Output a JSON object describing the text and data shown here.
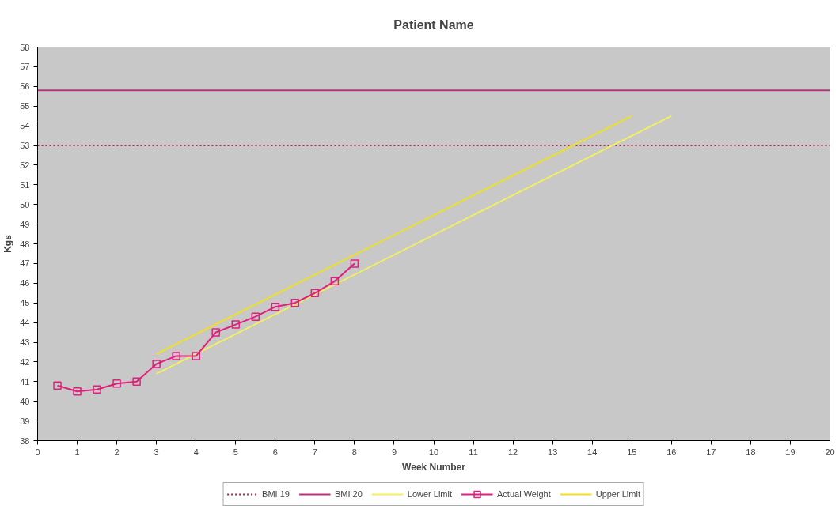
{
  "chart_data": {
    "type": "line",
    "title": "Patient Name",
    "xlabel": "Week Number",
    "ylabel": "Kgs",
    "xlim": [
      0,
      20
    ],
    "xticks": [
      0,
      1,
      2,
      3,
      4,
      5,
      6,
      7,
      8,
      9,
      10,
      11,
      12,
      13,
      14,
      15,
      16,
      17,
      18,
      19,
      20
    ],
    "ylim": [
      38,
      58
    ],
    "yticks": [
      38,
      39,
      40,
      41,
      42,
      43,
      44,
      45,
      46,
      47,
      48,
      49,
      50,
      51,
      52,
      53,
      54,
      55,
      56,
      57,
      58
    ],
    "grid": false,
    "legend": "bottom",
    "marker": "none",
    "line_style": "solid",
    "series": [
      {
        "name": "BMI 19",
        "color": "#a0304a",
        "line_style": "dotted",
        "x": [
          0,
          20
        ],
        "values": [
          53.0,
          53.0
        ]
      },
      {
        "name": "BMI 20",
        "color": "#c0307a",
        "x": [
          0,
          20
        ],
        "values": [
          55.8,
          55.8
        ]
      },
      {
        "name": "Lower Limit",
        "color": "#f0f060",
        "x": [
          3,
          16
        ],
        "values": [
          41.4,
          54.5
        ]
      },
      {
        "name": "Actual Weight",
        "color": "#e0207a",
        "marker": "square",
        "x": [
          0.5,
          1,
          1.5,
          2,
          2.5,
          3,
          3.5,
          4,
          4.5,
          5,
          5.5,
          6,
          6.5,
          7,
          7.5,
          8
        ],
        "values": [
          40.8,
          40.5,
          40.6,
          40.9,
          41.0,
          41.9,
          42.3,
          42.3,
          43.5,
          43.9,
          44.3,
          44.8,
          45.0,
          45.5,
          46.1,
          47.0
        ]
      },
      {
        "name": "Upper Limit",
        "color": "#f0e020",
        "x": [
          3,
          15
        ],
        "values": [
          42.4,
          54.5
        ]
      }
    ]
  }
}
